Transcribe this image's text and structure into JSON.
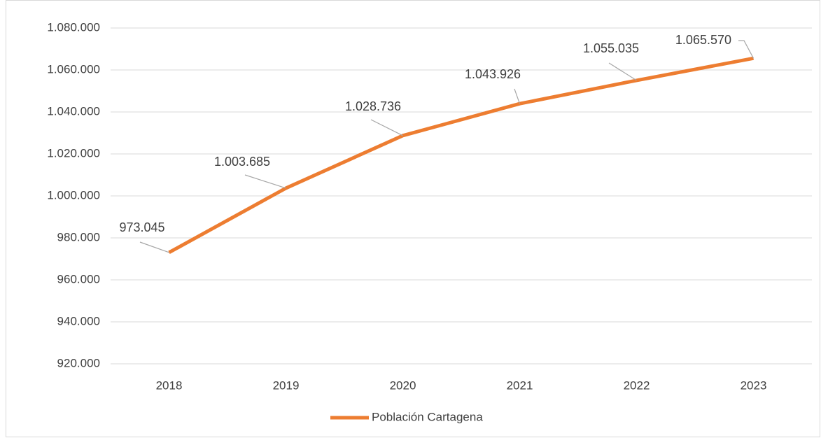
{
  "chart_data": {
    "type": "line",
    "categories": [
      "2018",
      "2019",
      "2020",
      "2021",
      "2022",
      "2023"
    ],
    "series": [
      {
        "name": "Población Cartagena",
        "color": "#ed7d31",
        "values": [
          973045,
          1003685,
          1028736,
          1043926,
          1055035,
          1065570
        ],
        "value_labels": [
          "973.045",
          "1.003.685",
          "1.028.736",
          "1.043.926",
          "1.055.035",
          "1.065.570"
        ]
      }
    ],
    "ylim": [
      920000,
      1080000
    ],
    "yticks": [
      {
        "value": 920000,
        "label": "920.000"
      },
      {
        "value": 940000,
        "label": "940.000"
      },
      {
        "value": 960000,
        "label": "960.000"
      },
      {
        "value": 980000,
        "label": "980.000"
      },
      {
        "value": 1000000,
        "label": "1.000.000"
      },
      {
        "value": 1020000,
        "label": "1.020.000"
      },
      {
        "value": 1040000,
        "label": "1.040.000"
      },
      {
        "value": 1060000,
        "label": "1.060.000"
      },
      {
        "value": 1080000,
        "label": "1.080.000"
      }
    ],
    "grid": true,
    "legend": "bottom"
  }
}
